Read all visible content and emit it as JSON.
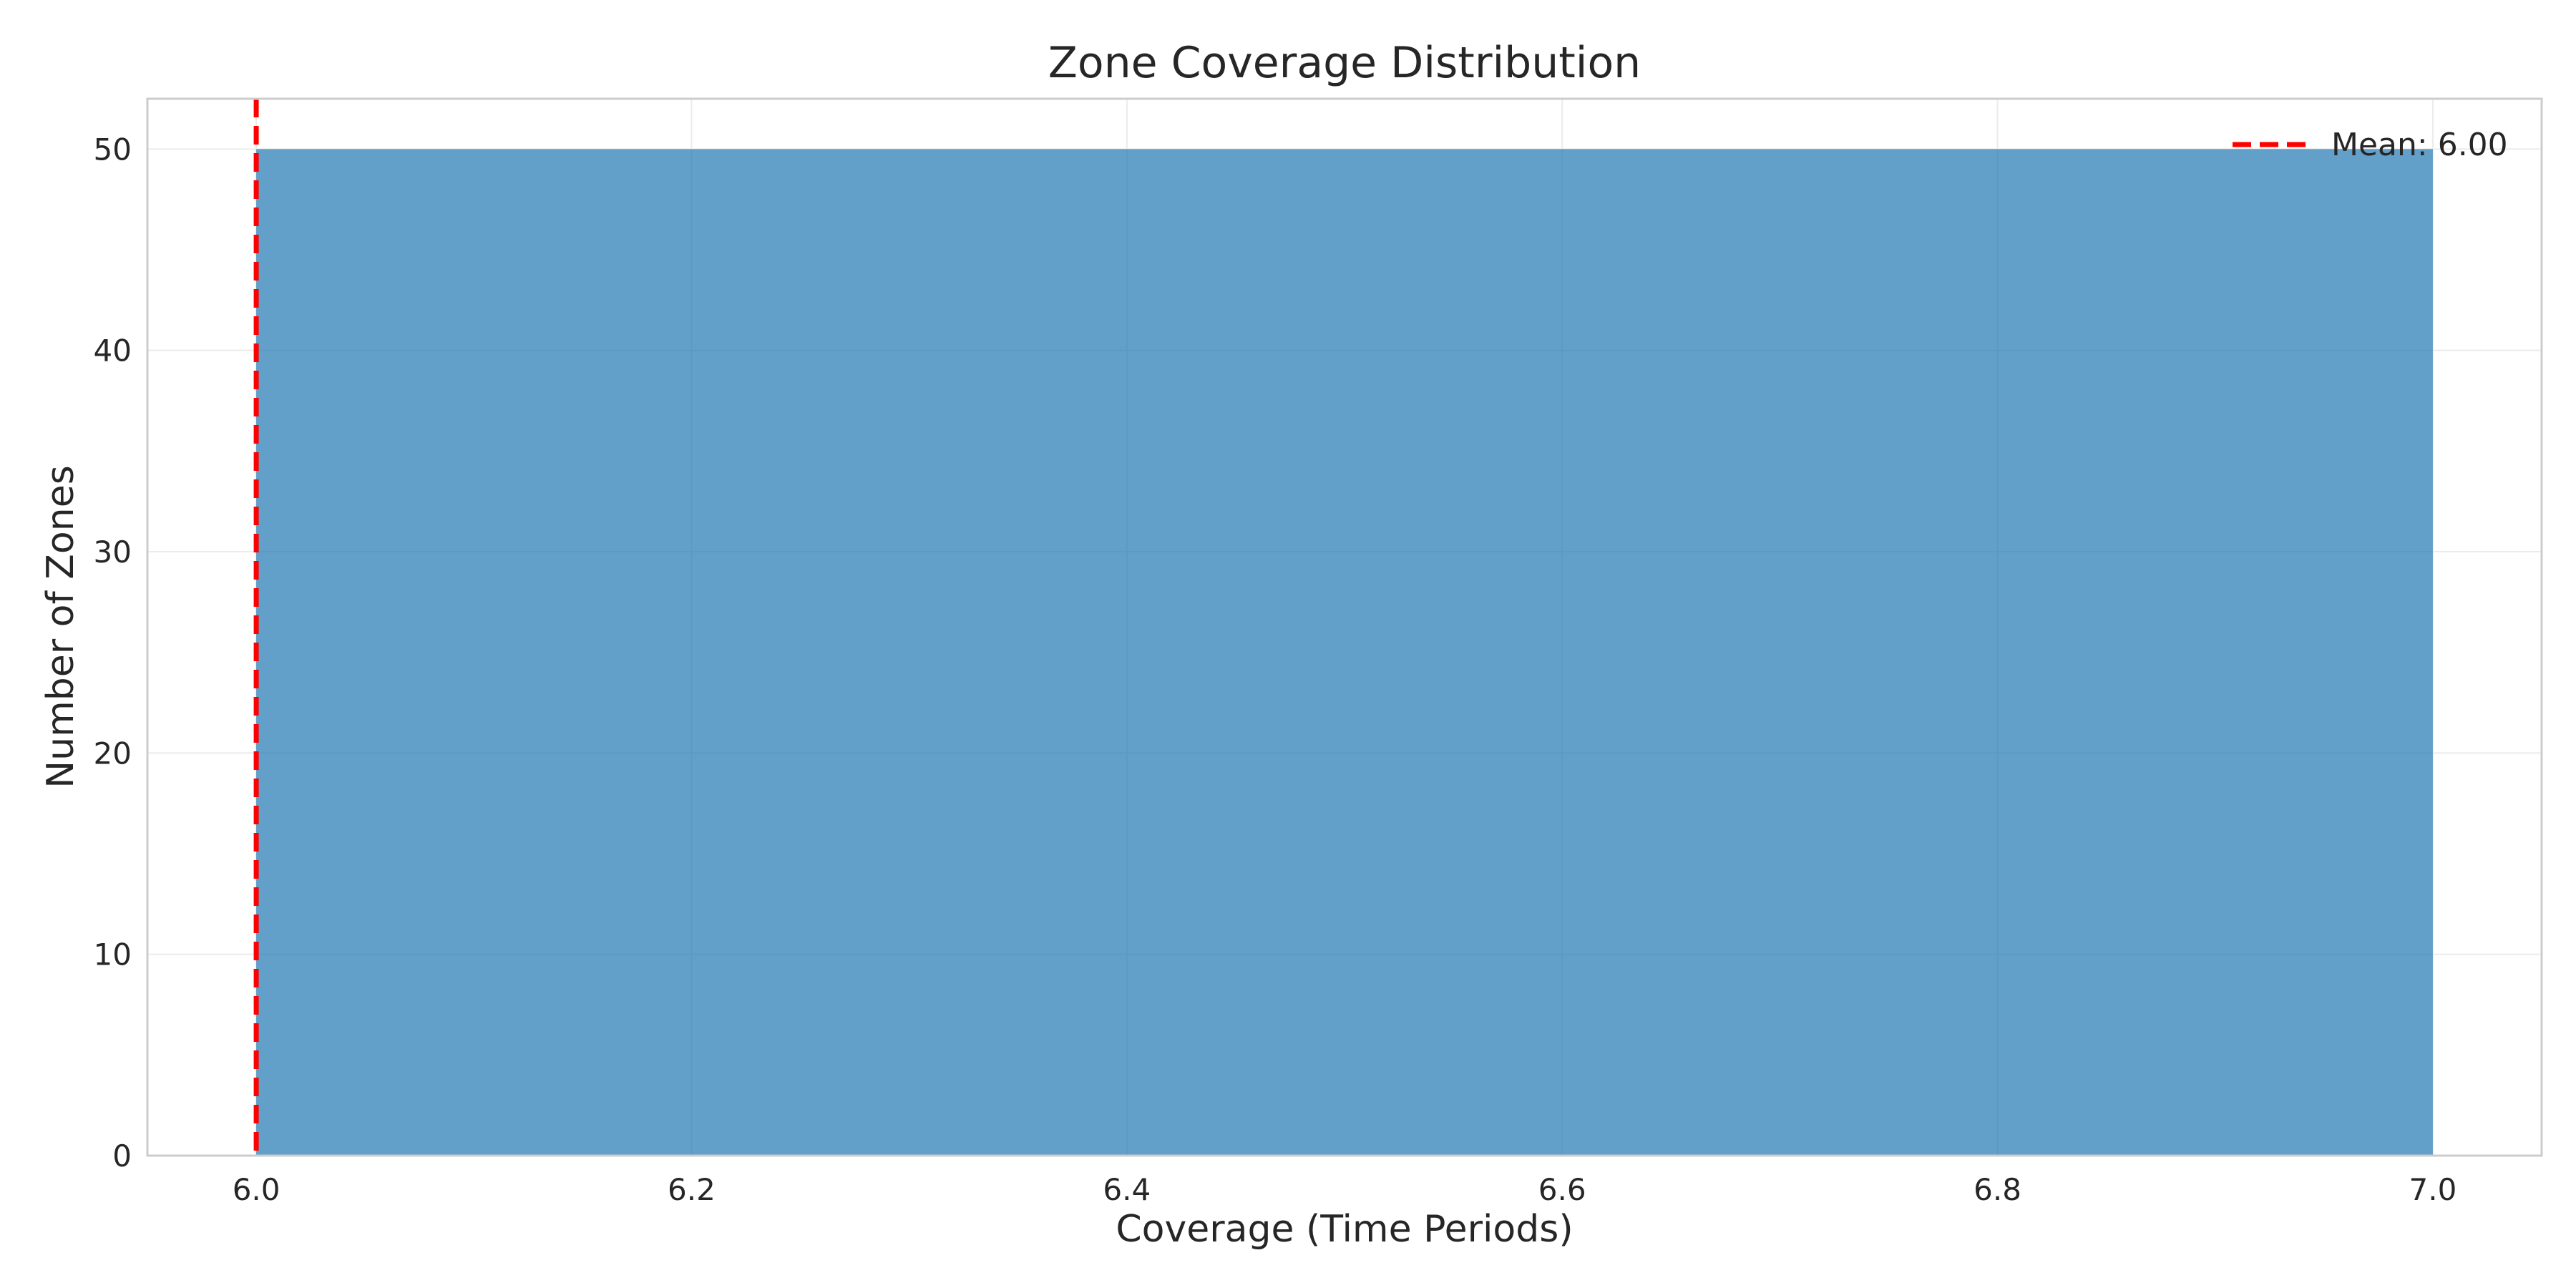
{
  "chart_data": {
    "type": "bar",
    "title": "Zone Coverage Distribution",
    "xlabel": "Coverage (Time Periods)",
    "ylabel": "Number of Zones",
    "xlim": [
      5.95,
      7.05
    ],
    "ylim": [
      0,
      52.5
    ],
    "x_ticks": [
      6.0,
      6.2,
      6.4,
      6.6,
      6.8,
      7.0
    ],
    "x_tick_labels": [
      "6.0",
      "6.2",
      "6.4",
      "6.6",
      "6.8",
      "7.0"
    ],
    "y_ticks": [
      0,
      10,
      20,
      30,
      40,
      50
    ],
    "y_tick_labels": [
      "0",
      "10",
      "20",
      "30",
      "40",
      "50"
    ],
    "bins": [
      {
        "x0": 6.0,
        "x1": 7.0,
        "value": 50
      }
    ],
    "bar_color": "#1f77b4",
    "reference_lines": [
      {
        "x": 6.0,
        "label": "Mean: 6.00",
        "color": "#ff0000",
        "style": "dashed"
      }
    ],
    "legend": {
      "entries": [
        "Mean: 6.00"
      ],
      "placement": "top-right"
    },
    "grid": true
  }
}
